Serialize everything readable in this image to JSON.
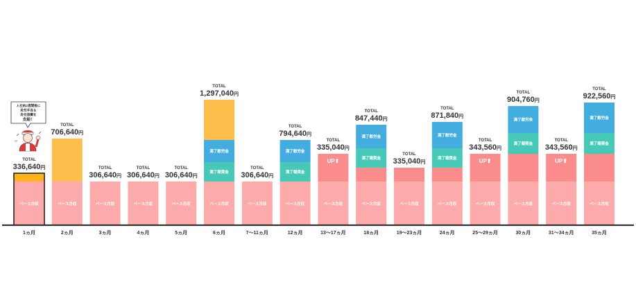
{
  "colors": {
    "base": "#fcaaaa",
    "up": "#fb8c8c",
    "bonus": "#47c9b8",
    "completion": "#43ade0",
    "first": "#fe8d8d",
    "first_extra": "#ffb31a",
    "gold": "#fbbe4a",
    "axis": "#333333"
  },
  "callout": {
    "line1": "入社約2週間後に",
    "line2": "赴任手当＆",
    "line3": "赴任旅費を",
    "line4": "支給！"
  },
  "chart_data": {
    "type": "bar",
    "subtype": "stacked",
    "total_caption": "TOTAL",
    "currency": "円",
    "categories": [
      "1ヵ月",
      "2ヵ月",
      "3ヵ月",
      "4ヵ月",
      "5ヵ月",
      "6ヵ月",
      "7〜11ヵ月",
      "12ヵ月",
      "13〜17ヵ月",
      "18ヵ月",
      "19〜23ヵ月",
      "24ヵ月",
      "25〜29ヵ月",
      "30ヵ月",
      "31〜34ヵ月",
      "35ヵ月"
    ],
    "totals": [
      "336,640",
      "706,640",
      "306,640",
      "306,640",
      "306,640",
      "1,297,040",
      "306,640",
      "794,640",
      "335,040",
      "847,440",
      "335,040",
      "871,840",
      "343,560",
      "904,760",
      "343,560",
      "922,560"
    ],
    "values": [
      336640,
      706640,
      306640,
      306640,
      306640,
      1297040,
      306640,
      794640,
      335040,
      847440,
      335040,
      871840,
      343560,
      904760,
      343560,
      922560
    ],
    "segments": [
      [
        {
          "kind": "base",
          "label": "ベース月収"
        },
        {
          "kind": "first_extra",
          "label": ""
        }
      ],
      [
        {
          "kind": "base",
          "label": "ベース月収"
        },
        {
          "kind": "gold",
          "label": ""
        }
      ],
      [
        {
          "kind": "base",
          "label": "ベース月収"
        }
      ],
      [
        {
          "kind": "base",
          "label": "ベース月収"
        }
      ],
      [
        {
          "kind": "base",
          "label": "ベース月収"
        }
      ],
      [
        {
          "kind": "base",
          "label": "ベース月収"
        },
        {
          "kind": "bonus",
          "label": "満了報奨金"
        },
        {
          "kind": "completion",
          "label": "満了慰労金"
        },
        {
          "kind": "gold",
          "label": ""
        }
      ],
      [
        {
          "kind": "base",
          "label": "ベース月収"
        }
      ],
      [
        {
          "kind": "base",
          "label": "ベース月収"
        },
        {
          "kind": "bonus",
          "label": "満了報奨金"
        },
        {
          "kind": "completion",
          "label": "満了慰労金"
        }
      ],
      [
        {
          "kind": "base",
          "label": "ベース月収"
        },
        {
          "kind": "up",
          "label": "UP⬆"
        }
      ],
      [
        {
          "kind": "base",
          "label": "ベース月収"
        },
        {
          "kind": "up",
          "label": ""
        },
        {
          "kind": "bonus",
          "label": "満了報奨金"
        },
        {
          "kind": "completion",
          "label": "満了慰労金"
        }
      ],
      [
        {
          "kind": "base",
          "label": "ベース月収"
        },
        {
          "kind": "up",
          "label": ""
        }
      ],
      [
        {
          "kind": "base",
          "label": "ベース月収"
        },
        {
          "kind": "up",
          "label": ""
        },
        {
          "kind": "bonus",
          "label": "満了報奨金"
        },
        {
          "kind": "completion",
          "label": "満了慰労金"
        }
      ],
      [
        {
          "kind": "base",
          "label": "ベース月収"
        },
        {
          "kind": "up",
          "label": "UP⬆"
        }
      ],
      [
        {
          "kind": "base",
          "label": "ベース月収"
        },
        {
          "kind": "up",
          "label": ""
        },
        {
          "kind": "bonus",
          "label": "満了報奨金"
        },
        {
          "kind": "completion",
          "label": "満了慰労金"
        }
      ],
      [
        {
          "kind": "base",
          "label": "ベース月収"
        },
        {
          "kind": "up",
          "label": "UP⬆"
        }
      ],
      [
        {
          "kind": "base",
          "label": "ベース月収"
        },
        {
          "kind": "up",
          "label": ""
        },
        {
          "kind": "bonus",
          "label": "満了報奨金"
        },
        {
          "kind": "completion",
          "label": "満了慰労金"
        }
      ]
    ],
    "highlight_index": 0,
    "title": "",
    "xlabel": "",
    "ylabel": "",
    "grid": false
  }
}
